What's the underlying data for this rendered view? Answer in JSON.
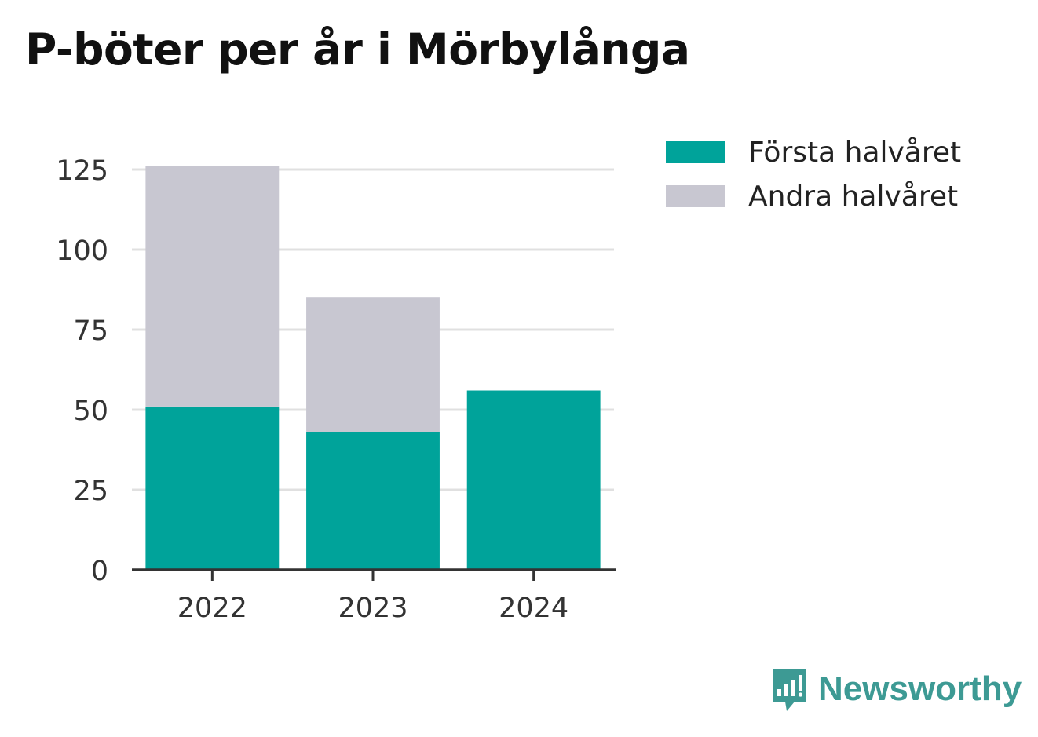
{
  "title": "P-böter per år i Mörbylånga",
  "legend": [
    {
      "label": "Första halvåret",
      "color": "#00a39a"
    },
    {
      "label": "Andra halvåret",
      "color": "#c8c7d1"
    }
  ],
  "brand": {
    "name": "Newsworthy",
    "icon": "newsworthy-logo-icon",
    "color": "#3d9a94"
  },
  "chart_data": {
    "type": "bar",
    "stacked": true,
    "categories": [
      "2022",
      "2023",
      "2024"
    ],
    "series": [
      {
        "name": "Första halvåret",
        "values": [
          51,
          43,
          56
        ],
        "color": "#00a39a"
      },
      {
        "name": "Andra halvåret",
        "values": [
          75,
          42,
          0
        ],
        "color": "#c8c7d1"
      }
    ],
    "ylim": [
      0,
      125
    ],
    "yticks": [
      0,
      25,
      50,
      75,
      100,
      125
    ],
    "grid": true,
    "legend_position": "top-right",
    "xlabel": "",
    "ylabel": ""
  }
}
